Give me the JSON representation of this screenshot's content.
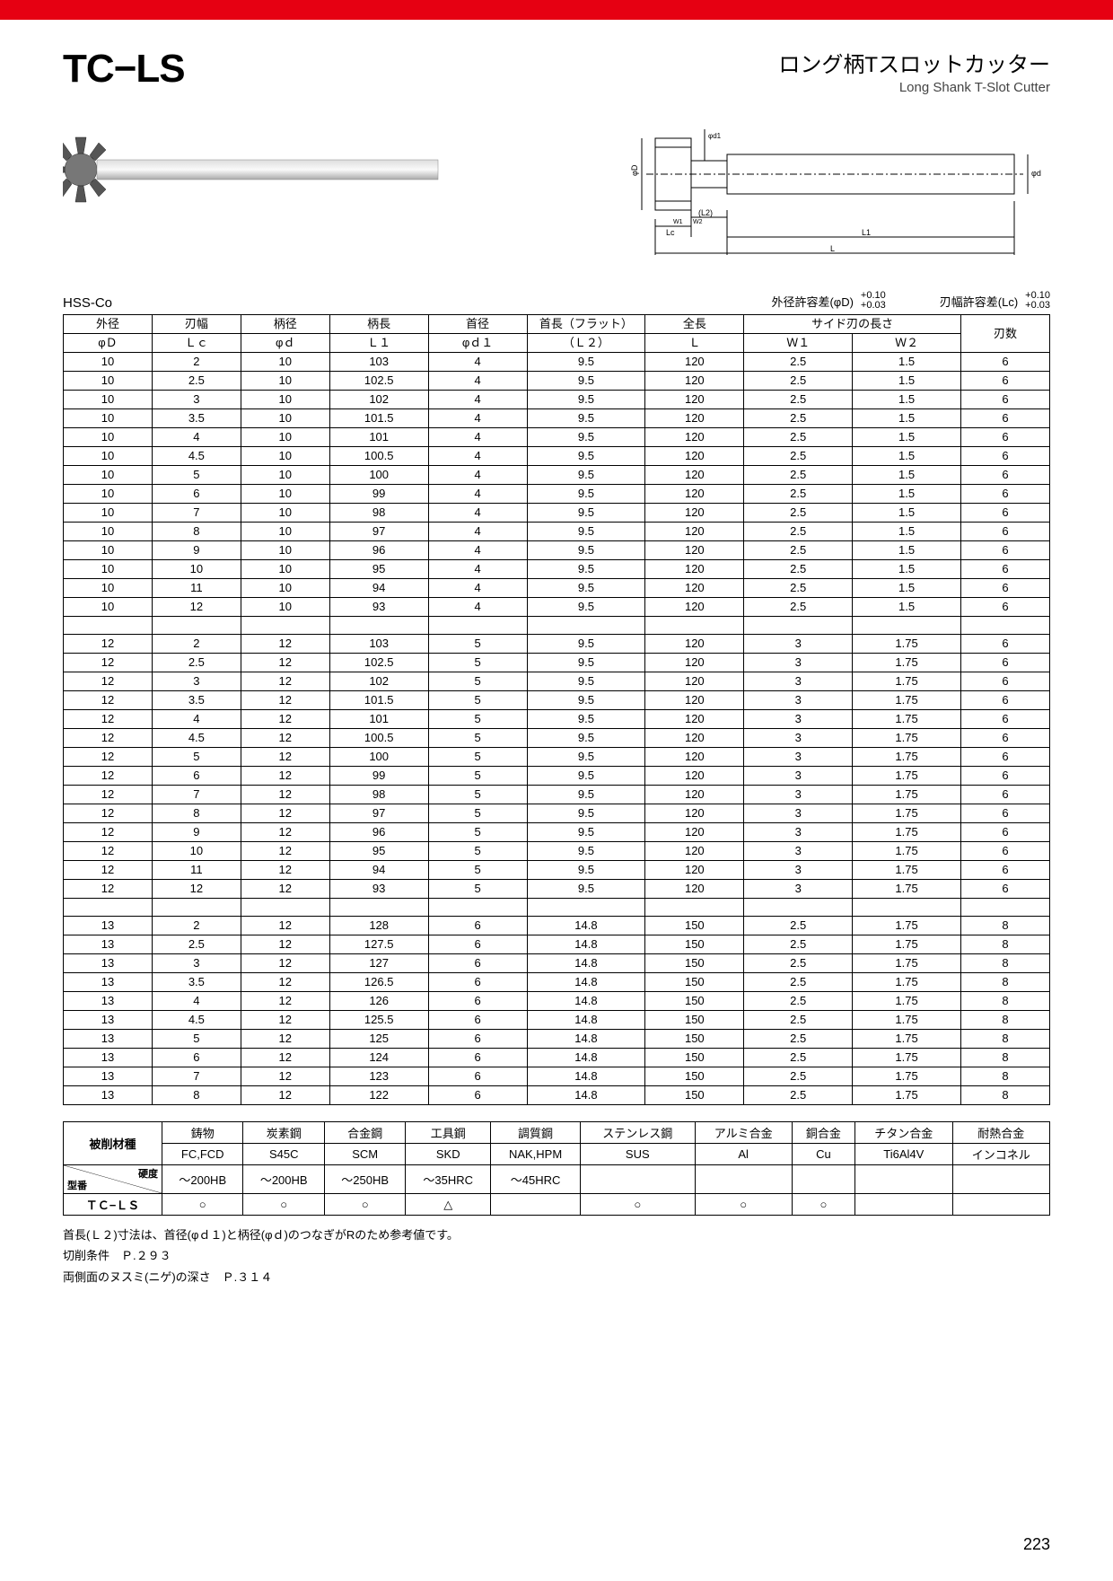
{
  "header": {
    "product_code": "TC−LS",
    "title_jp": "ロング柄Tスロットカッター",
    "title_en": "Long Shank T-Slot Cutter"
  },
  "material": "HSS-Co",
  "tolerances": {
    "d_label": "外径許容差(φD)",
    "d_top": "+0.10",
    "d_bot": "+0.03",
    "lc_label": "刃幅許容差(Lc)",
    "lc_top": "+0.10",
    "lc_bot": "+0.03"
  },
  "spec_table": {
    "head1": [
      "外径",
      "刃幅",
      "柄径",
      "柄長",
      "首径",
      "首長（フラット）",
      "全長",
      "サイド刃の長さ",
      "",
      "刃数"
    ],
    "head2": [
      "φＤ",
      "Ｌｃ",
      "φｄ",
      "Ｌ１",
      "φｄ１",
      "（Ｌ２）",
      "Ｌ",
      "Ｗ１",
      "Ｗ２",
      ""
    ],
    "col_widths": [
      "9%",
      "9%",
      "9%",
      "10%",
      "10%",
      "12%",
      "10%",
      "11%",
      "11%",
      "9%"
    ],
    "groups": [
      [
        [
          "10",
          "2",
          "10",
          "103",
          "4",
          "9.5",
          "120",
          "2.5",
          "1.5",
          "6"
        ],
        [
          "10",
          "2.5",
          "10",
          "102.5",
          "4",
          "9.5",
          "120",
          "2.5",
          "1.5",
          "6"
        ],
        [
          "10",
          "3",
          "10",
          "102",
          "4",
          "9.5",
          "120",
          "2.5",
          "1.5",
          "6"
        ],
        [
          "10",
          "3.5",
          "10",
          "101.5",
          "4",
          "9.5",
          "120",
          "2.5",
          "1.5",
          "6"
        ],
        [
          "10",
          "4",
          "10",
          "101",
          "4",
          "9.5",
          "120",
          "2.5",
          "1.5",
          "6"
        ],
        [
          "10",
          "4.5",
          "10",
          "100.5",
          "4",
          "9.5",
          "120",
          "2.5",
          "1.5",
          "6"
        ],
        [
          "10",
          "5",
          "10",
          "100",
          "4",
          "9.5",
          "120",
          "2.5",
          "1.5",
          "6"
        ],
        [
          "10",
          "6",
          "10",
          "99",
          "4",
          "9.5",
          "120",
          "2.5",
          "1.5",
          "6"
        ],
        [
          "10",
          "7",
          "10",
          "98",
          "4",
          "9.5",
          "120",
          "2.5",
          "1.5",
          "6"
        ],
        [
          "10",
          "8",
          "10",
          "97",
          "4",
          "9.5",
          "120",
          "2.5",
          "1.5",
          "6"
        ],
        [
          "10",
          "9",
          "10",
          "96",
          "4",
          "9.5",
          "120",
          "2.5",
          "1.5",
          "6"
        ],
        [
          "10",
          "10",
          "10",
          "95",
          "4",
          "9.5",
          "120",
          "2.5",
          "1.5",
          "6"
        ],
        [
          "10",
          "11",
          "10",
          "94",
          "4",
          "9.5",
          "120",
          "2.5",
          "1.5",
          "6"
        ],
        [
          "10",
          "12",
          "10",
          "93",
          "4",
          "9.5",
          "120",
          "2.5",
          "1.5",
          "6"
        ]
      ],
      [
        [
          "12",
          "2",
          "12",
          "103",
          "5",
          "9.5",
          "120",
          "3",
          "1.75",
          "6"
        ],
        [
          "12",
          "2.5",
          "12",
          "102.5",
          "5",
          "9.5",
          "120",
          "3",
          "1.75",
          "6"
        ],
        [
          "12",
          "3",
          "12",
          "102",
          "5",
          "9.5",
          "120",
          "3",
          "1.75",
          "6"
        ],
        [
          "12",
          "3.5",
          "12",
          "101.5",
          "5",
          "9.5",
          "120",
          "3",
          "1.75",
          "6"
        ],
        [
          "12",
          "4",
          "12",
          "101",
          "5",
          "9.5",
          "120",
          "3",
          "1.75",
          "6"
        ],
        [
          "12",
          "4.5",
          "12",
          "100.5",
          "5",
          "9.5",
          "120",
          "3",
          "1.75",
          "6"
        ],
        [
          "12",
          "5",
          "12",
          "100",
          "5",
          "9.5",
          "120",
          "3",
          "1.75",
          "6"
        ],
        [
          "12",
          "6",
          "12",
          "99",
          "5",
          "9.5",
          "120",
          "3",
          "1.75",
          "6"
        ],
        [
          "12",
          "7",
          "12",
          "98",
          "5",
          "9.5",
          "120",
          "3",
          "1.75",
          "6"
        ],
        [
          "12",
          "8",
          "12",
          "97",
          "5",
          "9.5",
          "120",
          "3",
          "1.75",
          "6"
        ],
        [
          "12",
          "9",
          "12",
          "96",
          "5",
          "9.5",
          "120",
          "3",
          "1.75",
          "6"
        ],
        [
          "12",
          "10",
          "12",
          "95",
          "5",
          "9.5",
          "120",
          "3",
          "1.75",
          "6"
        ],
        [
          "12",
          "11",
          "12",
          "94",
          "5",
          "9.5",
          "120",
          "3",
          "1.75",
          "6"
        ],
        [
          "12",
          "12",
          "12",
          "93",
          "5",
          "9.5",
          "120",
          "3",
          "1.75",
          "6"
        ]
      ],
      [
        [
          "13",
          "2",
          "12",
          "128",
          "6",
          "14.8",
          "150",
          "2.5",
          "1.75",
          "8"
        ],
        [
          "13",
          "2.5",
          "12",
          "127.5",
          "6",
          "14.8",
          "150",
          "2.5",
          "1.75",
          "8"
        ],
        [
          "13",
          "3",
          "12",
          "127",
          "6",
          "14.8",
          "150",
          "2.5",
          "1.75",
          "8"
        ],
        [
          "13",
          "3.5",
          "12",
          "126.5",
          "6",
          "14.8",
          "150",
          "2.5",
          "1.75",
          "8"
        ],
        [
          "13",
          "4",
          "12",
          "126",
          "6",
          "14.8",
          "150",
          "2.5",
          "1.75",
          "8"
        ],
        [
          "13",
          "4.5",
          "12",
          "125.5",
          "6",
          "14.8",
          "150",
          "2.5",
          "1.75",
          "8"
        ],
        [
          "13",
          "5",
          "12",
          "125",
          "6",
          "14.8",
          "150",
          "2.5",
          "1.75",
          "8"
        ],
        [
          "13",
          "6",
          "12",
          "124",
          "6",
          "14.8",
          "150",
          "2.5",
          "1.75",
          "8"
        ],
        [
          "13",
          "7",
          "12",
          "123",
          "6",
          "14.8",
          "150",
          "2.5",
          "1.75",
          "8"
        ],
        [
          "13",
          "8",
          "12",
          "122",
          "6",
          "14.8",
          "150",
          "2.5",
          "1.75",
          "8"
        ]
      ]
    ]
  },
  "mat_table": {
    "row0_label": "被削材種",
    "row0": [
      "鋳物",
      "炭素鋼",
      "合金鋼",
      "工具鋼",
      "調質鋼",
      "ステンレス鋼",
      "アルミ合金",
      "銅合金",
      "チタン合金",
      "耐熱合金"
    ],
    "row1": [
      "FC,FCD",
      "S45C",
      "SCM",
      "SKD",
      "NAK,HPM",
      "SUS",
      "Al",
      "Cu",
      "Ti6Al4V",
      "インコネル"
    ],
    "row2_top": "硬度",
    "row2_bot": "型番",
    "row2": [
      "～200HB",
      "～200HB",
      "～250HB",
      "～35HRC",
      "～45HRC",
      "",
      "",
      "",
      "",
      ""
    ],
    "row3_label": "ＴＣ−ＬＳ",
    "row3": [
      "○",
      "○",
      "○",
      "△",
      "",
      "○",
      "○",
      "○",
      "",
      ""
    ]
  },
  "notes": {
    "n1": "首長(Ｌ２)寸法は、首径(φｄ１)と柄径(φｄ)のつなぎがRのため参考値です。",
    "n2": "切削条件　Ｐ.２９３",
    "n3": "両側面のヌスミ(ニゲ)の深さ　Ｐ.３１４"
  },
  "page_number": "223"
}
